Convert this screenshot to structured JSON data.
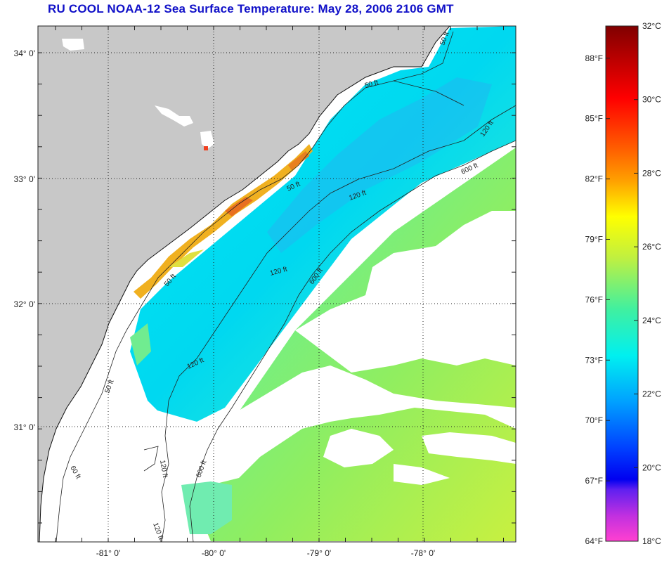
{
  "title": "RU COOL  NOAA-12  Sea Surface Temperature:  May 28, 2006 2106 GMT",
  "map": {
    "lat_labels": [
      "34° 0'",
      "33° 0'",
      "32° 0'",
      "31° 0'"
    ],
    "lon_labels": [
      "-81° 0'",
      "-80° 0'",
      "-79° 0'",
      "-78° 0'"
    ],
    "contour_labels": [
      "50 ft",
      "50 ft",
      "50 ft",
      "50 ft",
      "50 ft",
      "60 ft",
      "120 ft",
      "120 ft",
      "120 ft",
      "120 ft",
      "120 ft",
      "120 ft",
      "600 ft",
      "600 ft",
      "600 ft"
    ],
    "colors": {
      "land": "#c8c8c8",
      "cloud": "#ffffff",
      "sst_cool": "#00e0f0",
      "sst_mid": "#40f0c0",
      "sst_warm": "#b8f040",
      "sst_hot": "#f0a020",
      "grid": "#222222"
    }
  },
  "colorbar": {
    "fahrenheit_labels": [
      "88°F",
      "85°F",
      "82°F",
      "79°F",
      "76°F",
      "73°F",
      "70°F",
      "67°F",
      "64°F"
    ],
    "celsius_labels": [
      "32°C",
      "30°C",
      "28°C",
      "26°C",
      "24°C",
      "22°C",
      "20°C",
      "18°C"
    ],
    "range_celsius": [
      18,
      32
    ],
    "range_fahrenheit": [
      64,
      89.6
    ]
  }
}
